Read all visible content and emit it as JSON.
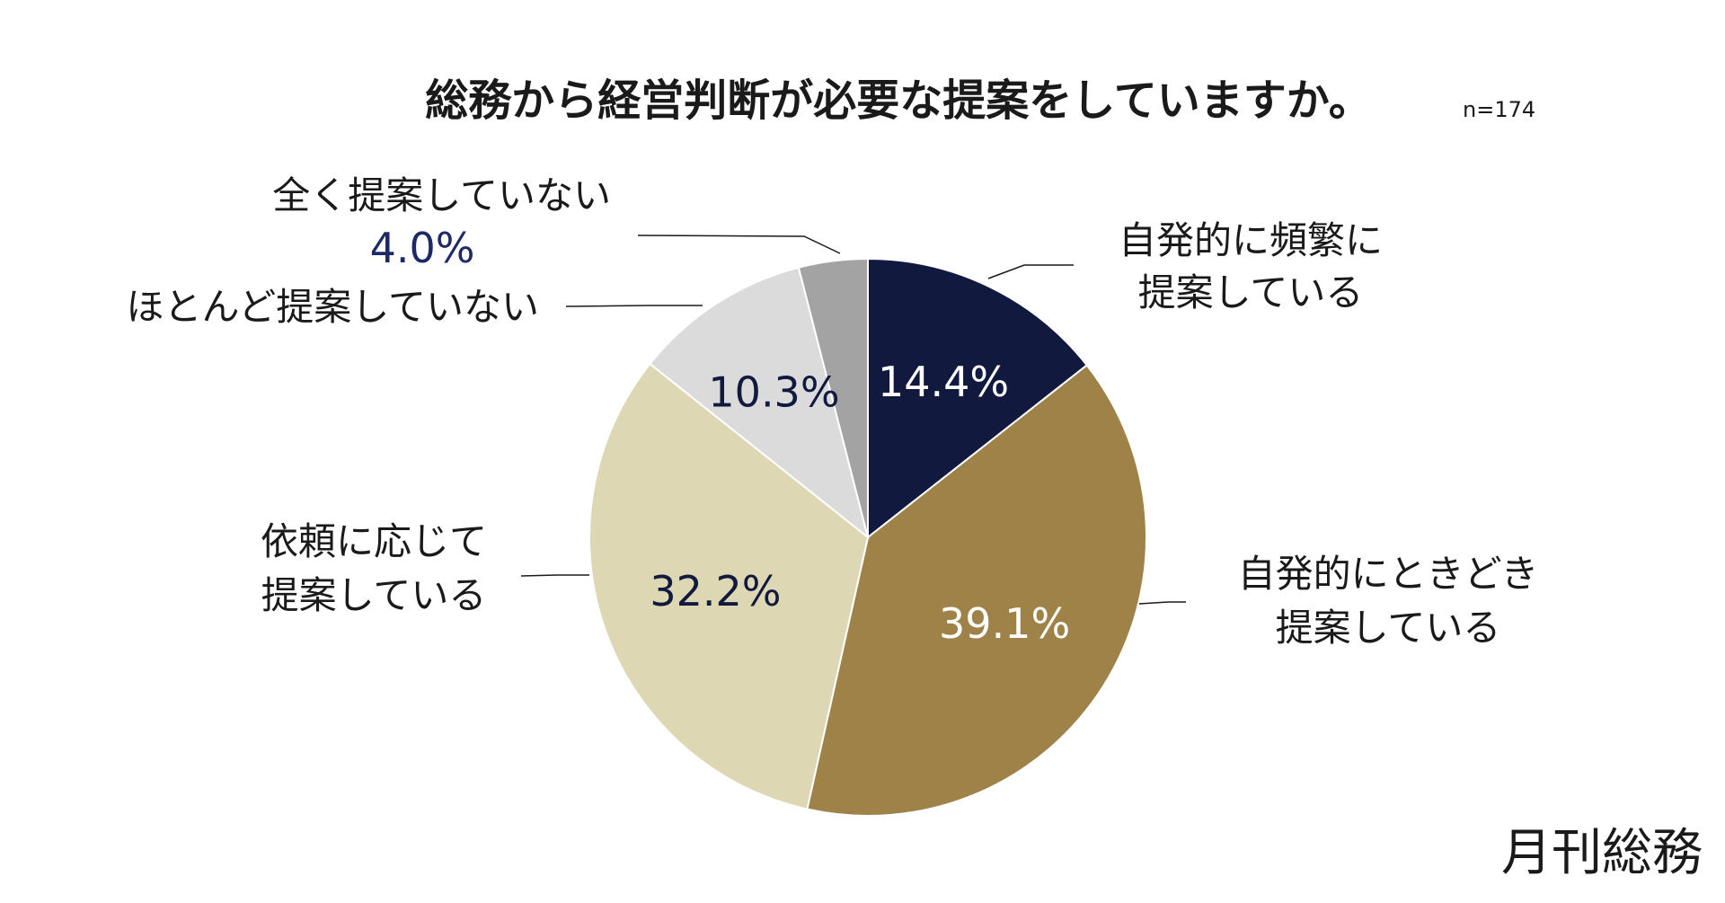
{
  "chart_data": {
    "type": "pie",
    "title": "総務から経営判断が必要な提案をしていますか。",
    "sample_size": "n=174",
    "slices": [
      {
        "label_lines": [
          "自発的に頻繁に",
          "提案している"
        ],
        "value": 14.4,
        "value_label": "14.4%",
        "color": "#111a3e",
        "value_color": "#ffffff"
      },
      {
        "label_lines": [
          "自発的にときどき",
          "提案している"
        ],
        "value": 39.1,
        "value_label": "39.1%",
        "color": "#9f8248",
        "value_color": "#ffffff"
      },
      {
        "label_lines": [
          "依頼に応じて",
          "提案している"
        ],
        "value": 32.2,
        "value_label": "32.2%",
        "color": "#ded7b3",
        "value_color": "#111a3e"
      },
      {
        "label_lines": [
          "ほとんど提案していない"
        ],
        "value": 10.3,
        "value_label": "10.3%",
        "color": "#dbdbdb",
        "value_color": "#111a3e"
      },
      {
        "label_lines": [
          "全く提案していない"
        ],
        "value": 4.0,
        "value_label": "4.0%",
        "color": "#a3a3a3",
        "value_color": "#111a3e"
      }
    ],
    "start": "12 o'clock",
    "direction": "clockwise"
  },
  "brand": "月刊総務"
}
